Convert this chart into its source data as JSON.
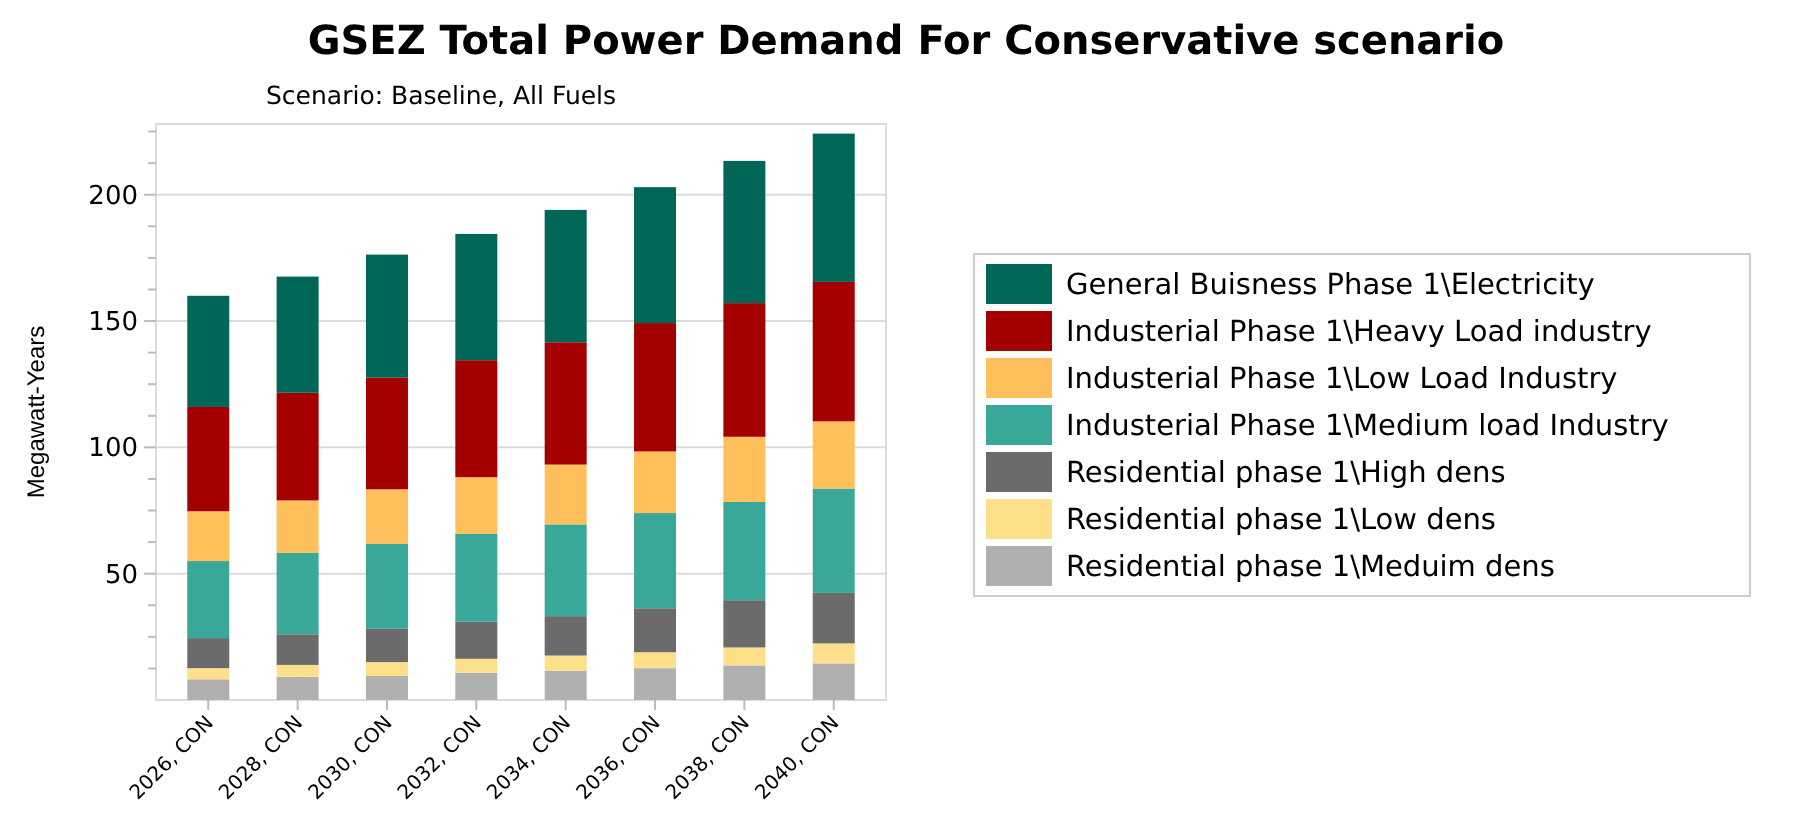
{
  "chart_data": {
    "type": "bar",
    "title": "GSEZ Total Power Demand For Conservative scenario",
    "subtitle": "Scenario: Baseline, All Fuels",
    "ylabel": "Megawatt-Years",
    "categories": [
      "2026, CON",
      "2028, CON",
      "2030, CON",
      "2032, CON",
      "2034, CON",
      "2036, CON",
      "2038, CON",
      "2040, CON"
    ],
    "stacked": true,
    "grid": "y",
    "legend": "right",
    "ylim": [
      0,
      228
    ],
    "yticks": [
      {
        "value": 12.5,
        "label": null
      },
      {
        "value": 25,
        "label": null
      },
      {
        "value": 37.5,
        "label": null
      },
      50,
      {
        "value": 62.5,
        "label": null
      },
      {
        "value": 75,
        "label": null
      },
      {
        "value": 87.5,
        "label": null
      },
      100,
      {
        "value": 112.5,
        "label": null
      },
      {
        "value": 125,
        "label": null
      },
      {
        "value": 137.5,
        "label": null
      },
      150,
      {
        "value": 162.5,
        "label": null
      },
      {
        "value": 175,
        "label": null
      },
      {
        "value": 187.5,
        "label": null
      },
      200,
      {
        "value": 212.5,
        "label": null
      },
      {
        "value": 225,
        "label": null
      }
    ],
    "series": [
      {
        "name": "Residential phase 1\\Meduim dens",
        "color": "#b0b0b0",
        "values": [
          8.2,
          9.2,
          9.5,
          10.8,
          11.6,
          12.6,
          13.7,
          14.5
        ]
      },
      {
        "name": "Residential phase 1\\Low dens",
        "color": "#ffe08a",
        "values": [
          4.4,
          4.7,
          5.5,
          5.5,
          6,
          6.3,
          7.1,
          7.9
        ]
      },
      {
        "name": "Residential phase 1\\High dens",
        "color": "#6b6b6b",
        "values": [
          11.9,
          12.1,
          13.2,
          14.7,
          15.6,
          17.4,
          18.7,
          20
        ]
      },
      {
        "name": "Industerial Phase 1\\Medium load Industry",
        "color": "#3aa899",
        "values": [
          30.5,
          32.2,
          33.6,
          34.8,
          36.3,
          37.7,
          38.9,
          41.3
        ]
      },
      {
        "name": "Industerial Phase 1\\Low Load Industry",
        "color": "#ffbf5a",
        "values": [
          19.7,
          20.8,
          21.6,
          22.4,
          23.7,
          24.4,
          25.8,
          26.6
        ]
      },
      {
        "name": "Industerial Phase 1\\Heavy Load industry",
        "color": "#a50000",
        "values": [
          41.3,
          42.6,
          44.2,
          46.3,
          48.4,
          50.8,
          52.9,
          55.2
        ]
      },
      {
        "name": "General Buisness Phase 1\\Electricity",
        "color": "#006658",
        "values": [
          44,
          46,
          48.7,
          50,
          52.4,
          53.8,
          56.3,
          58.7
        ]
      }
    ]
  }
}
